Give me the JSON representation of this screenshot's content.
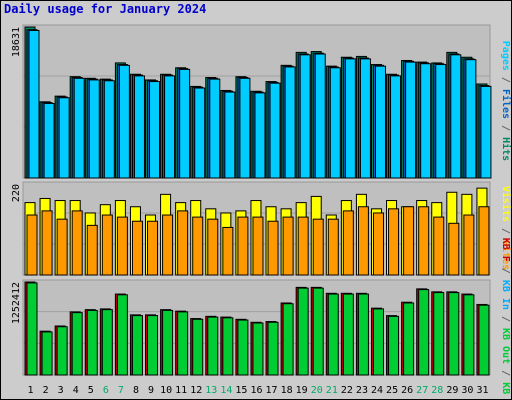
{
  "chart_data": {
    "type": "bar",
    "title": "Daily usage for January 2024",
    "categories": [
      "1",
      "2",
      "3",
      "4",
      "5",
      "6",
      "7",
      "8",
      "9",
      "10",
      "11",
      "12",
      "13",
      "14",
      "15",
      "16",
      "17",
      "18",
      "19",
      "20",
      "21",
      "22",
      "23",
      "24",
      "25",
      "26",
      "27",
      "28",
      "29",
      "30",
      "31"
    ],
    "weekend_days": [
      "6",
      "7",
      "13",
      "14",
      "20",
      "21",
      "27",
      "28"
    ],
    "panels": [
      {
        "id": "top",
        "ymax_label": "18631",
        "ymax": 18631,
        "legend": [
          {
            "text": "Pages",
            "color": "#00ccff"
          },
          {
            "text": " / ",
            "color": "#666666"
          },
          {
            "text": "Files",
            "color": "#0066cc"
          },
          {
            "text": " / ",
            "color": "#666666"
          },
          {
            "text": "Hits",
            "color": "#008866"
          }
        ],
        "series": [
          {
            "name": "Hits",
            "color": "#008866",
            "values": [
              18631,
              9400,
              10100,
              12500,
              12300,
              12200,
              14200,
              12800,
              12100,
              12800,
              13600,
              11300,
              12400,
              10800,
              12500,
              10700,
              11900,
              13900,
              15500,
              15600,
              13800,
              14900,
              15000,
              14000,
              12800,
              14500,
              14300,
              14200,
              15500,
              14900,
              11600
            ]
          },
          {
            "name": "Files",
            "color": "#0066cc",
            "values": [
              18300,
              9300,
              10000,
              12400,
              12200,
              12100,
              14000,
              12700,
              12000,
              12700,
              13500,
              11200,
              12300,
              10700,
              12400,
              10600,
              11800,
              13800,
              15300,
              15400,
              13700,
              14800,
              14800,
              13900,
              12700,
              14400,
              14200,
              14100,
              15300,
              14700,
              11400
            ]
          },
          {
            "name": "Pages",
            "color": "#00ccff",
            "values": [
              18200,
              9200,
              9900,
              12300,
              12100,
              12000,
              13900,
              12600,
              11900,
              12600,
              13400,
              11100,
              12200,
              10600,
              12300,
              10500,
              11700,
              13700,
              15200,
              15300,
              13600,
              14700,
              14700,
              13800,
              12600,
              14300,
              14100,
              14000,
              15200,
              14600,
              11300
            ]
          }
        ]
      },
      {
        "id": "mid",
        "ymax_label": "220",
        "ymax": 220,
        "legend": [
          {
            "text": "Visits",
            "color": "#ffff00"
          },
          {
            "text": " / ",
            "color": "#666666"
          },
          {
            "text": "Sites",
            "color": "#ff9900"
          }
        ],
        "series": [
          {
            "name": "Visits",
            "color": "#ffff00",
            "values": [
              175,
              185,
              180,
              180,
              150,
              170,
              180,
              165,
              145,
              195,
              175,
              180,
              160,
              150,
              155,
              180,
              165,
              160,
              175,
              190,
              145,
              180,
              195,
              160,
              180,
              165,
              180,
              175,
              200,
              195,
              210
            ]
          },
          {
            "name": "Sites",
            "color": "#ff9900",
            "values": [
              145,
              155,
              135,
              155,
              120,
              145,
              140,
              130,
              130,
              145,
              155,
              140,
              135,
              115,
              140,
              140,
              130,
              140,
              140,
              135,
              135,
              155,
              165,
              150,
              160,
              165,
              165,
              140,
              125,
              145,
              165
            ]
          }
        ]
      },
      {
        "id": "bot",
        "ymax_label": "1252412",
        "ymax": 1252412,
        "legend": [
          {
            "text": "KB F",
            "color": "#cc0000"
          },
          {
            "text": " / ",
            "color": "#666666"
          },
          {
            "text": "KB In",
            "color": "#00aaff"
          },
          {
            "text": " / ",
            "color": "#666666"
          },
          {
            "text": "KB Out",
            "color": "#00cc33"
          },
          {
            "text": " / ",
            "color": "#666666"
          },
          {
            "text": "KB Out",
            "color": "#00cc33"
          }
        ],
        "series": [
          {
            "name": "KB F",
            "color": "#cc0000",
            "values": [
              1252412,
              590000,
              660000,
              850000,
              880000,
              890000,
              1090000,
              810000,
              810000,
              880000,
              860000,
              760000,
              790000,
              780000,
              750000,
              710000,
              720000,
              970000,
              1180000,
              1180000,
              1100000,
              1100000,
              1100000,
              900000,
              800000,
              980000,
              1160000,
              1120000,
              1120000,
              1090000,
              950000
            ]
          },
          {
            "name": "KB Out",
            "color": "#00cc33",
            "values": [
              1240000,
              580000,
              650000,
              840000,
              870000,
              880000,
              1080000,
              800000,
              800000,
              870000,
              850000,
              750000,
              780000,
              770000,
              740000,
              700000,
              710000,
              960000,
              1170000,
              1170000,
              1090000,
              1090000,
              1090000,
              890000,
              790000,
              970000,
              1150000,
              1110000,
              1110000,
              1080000,
              940000
            ]
          }
        ]
      }
    ]
  }
}
